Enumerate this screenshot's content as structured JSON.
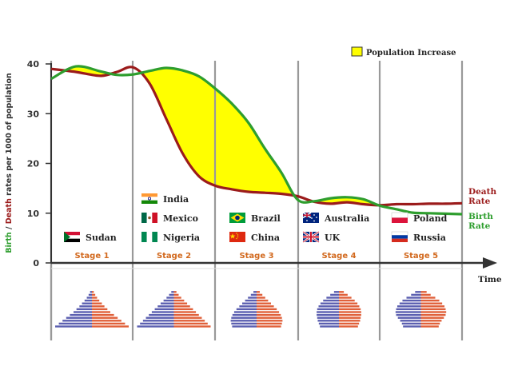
{
  "chart_data": {
    "type": "line",
    "ylim": [
      0,
      40
    ],
    "y_ticks": [
      "0",
      "10",
      "20",
      "30",
      "40"
    ],
    "ylabel_parts": [
      "Birth",
      " / ",
      "Death",
      " rates per 1000 of population"
    ],
    "xlabel": "Time",
    "legend": {
      "label": "Population Increase",
      "color": "#ffff00",
      "position": "top-right"
    },
    "x": [
      0,
      0.3,
      0.6,
      0.8,
      1.0,
      1.2,
      1.4,
      1.6,
      1.8,
      2.0,
      2.2,
      2.4,
      2.6,
      2.8,
      3.0,
      3.2,
      3.4,
      3.6,
      3.8,
      4.0,
      4.2,
      4.4,
      4.6,
      4.8,
      5.0
    ],
    "series": [
      {
        "name": "Death Rate",
        "label_lines": [
          "Death",
          "Rate"
        ],
        "color": "#9b1b1b",
        "values": [
          39,
          38.4,
          37.6,
          38.4,
          39.3,
          36,
          29,
          22,
          17.4,
          15.5,
          14.8,
          14.3,
          14.1,
          13.9,
          13.4,
          12.3,
          11.9,
          12.2,
          11.8,
          11.6,
          11.8,
          11.8,
          11.9,
          11.9,
          12
        ]
      },
      {
        "name": "Birth Rate",
        "label_lines": [
          "Birth",
          "Rate"
        ],
        "color": "#2e9e2e",
        "values": [
          37,
          39.5,
          38.5,
          37.8,
          37.9,
          38.6,
          39.2,
          38.7,
          37.5,
          35,
          32,
          28.2,
          23,
          18.2,
          12.7,
          12.4,
          13,
          13.2,
          12.8,
          11.5,
          10.8,
          10.1,
          10.0,
          9.9,
          9.8
        ]
      }
    ],
    "stages": [
      "Stage 1",
      "Stage 2",
      "Stage 3",
      "Stage 4",
      "Stage 5"
    ],
    "stage_color": "#d2691e",
    "countries": [
      {
        "stage": 0,
        "row": 2,
        "name": "Sudan",
        "flag": "sudan-flag"
      },
      {
        "stage": 1,
        "row": 0,
        "name": "India",
        "flag": "india-flag"
      },
      {
        "stage": 1,
        "row": 1,
        "name": "Mexico",
        "flag": "mexico-flag"
      },
      {
        "stage": 1,
        "row": 2,
        "name": "Nigeria",
        "flag": "nigeria-flag"
      },
      {
        "stage": 2,
        "row": 1,
        "name": "Brazil",
        "flag": "brazil-flag"
      },
      {
        "stage": 2,
        "row": 2,
        "name": "China",
        "flag": "china-flag"
      },
      {
        "stage": 3,
        "row": 1,
        "name": "Australia",
        "flag": "australia-flag"
      },
      {
        "stage": 3,
        "row": 2,
        "name": "UK",
        "flag": "uk-flag"
      },
      {
        "stage": 4,
        "row": 1,
        "name": "Poland",
        "flag": "poland-flag"
      },
      {
        "stage": 4,
        "row": 2,
        "name": "Russia",
        "flag": "russia-flag"
      }
    ],
    "pyramid_colors": {
      "male": "#5b5fb0",
      "female": "#e0603a"
    },
    "grid": false
  }
}
